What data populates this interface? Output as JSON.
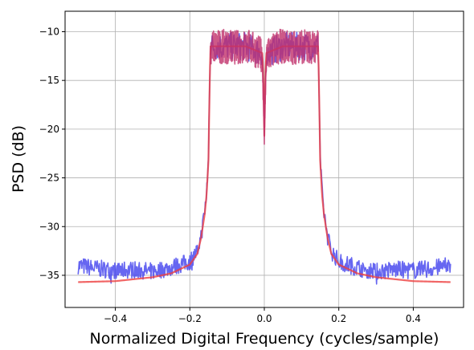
{
  "chart_data": {
    "type": "line",
    "title": "",
    "xlabel": "Normalized Digital Frequency (cycles/sample)",
    "ylabel": "PSD (dB)",
    "xlim": [
      -0.535,
      0.535
    ],
    "ylim": [
      -38.3,
      -7.9
    ],
    "xticks": [
      -0.4,
      -0.2,
      0.0,
      0.2,
      0.4
    ],
    "xtick_labels": [
      "−0.4",
      "−0.2",
      "0.0",
      "0.2",
      "0.4"
    ],
    "yticks": [
      -35,
      -30,
      -25,
      -20,
      -15,
      -10
    ],
    "ytick_labels": [
      "−35",
      "−30",
      "−25",
      "−20",
      "−15",
      "−10"
    ],
    "grid": true,
    "legend": "none",
    "series": [
      {
        "color": "#4040ee",
        "x": [
          -0.5,
          -0.45,
          -0.4,
          -0.35,
          -0.3,
          -0.25,
          -0.2,
          -0.18,
          -0.17,
          -0.16,
          -0.155,
          -0.15,
          -0.148,
          -0.146,
          -0.145,
          -0.1,
          -0.05,
          -0.005,
          -0.002,
          0.0,
          0.002,
          0.005,
          0.05,
          0.1,
          0.145,
          0.146,
          0.148,
          0.15,
          0.155,
          0.16,
          0.17,
          0.18,
          0.2,
          0.25,
          0.3,
          0.35,
          0.4,
          0.45,
          0.5
        ],
        "y": [
          -34.0,
          -34.3,
          -34.5,
          -34.4,
          -34.6,
          -34.2,
          -33.6,
          -32.5,
          -31.0,
          -28.5,
          -26.5,
          -23.0,
          -18.0,
          -14.0,
          -11.5,
          -11.5,
          -11.5,
          -12.2,
          -16.0,
          -20.5,
          -16.0,
          -12.2,
          -11.5,
          -11.5,
          -11.5,
          -14.0,
          -18.0,
          -23.0,
          -26.5,
          -28.5,
          -31.0,
          -32.5,
          -33.6,
          -34.2,
          -34.6,
          -34.4,
          -34.5,
          -34.3,
          -34.0
        ],
        "noise": 0.9
      },
      {
        "color": "#ee4040",
        "x": [
          -0.5,
          -0.4,
          -0.3,
          -0.25,
          -0.2,
          -0.18,
          -0.17,
          -0.16,
          -0.155,
          -0.15,
          -0.148,
          -0.146,
          -0.145,
          -0.1,
          -0.05,
          -0.005,
          -0.002,
          0.0,
          0.002,
          0.005,
          0.05,
          0.1,
          0.145,
          0.146,
          0.148,
          0.15,
          0.155,
          0.16,
          0.17,
          0.18,
          0.2,
          0.25,
          0.3,
          0.4,
          0.5
        ],
        "y": [
          -35.7,
          -35.6,
          -35.2,
          -34.8,
          -33.9,
          -32.8,
          -31.2,
          -28.7,
          -26.7,
          -23.2,
          -18.2,
          -14.2,
          -11.5,
          -11.5,
          -11.5,
          -12.2,
          -16.0,
          -20.7,
          -16.0,
          -12.2,
          -11.5,
          -11.5,
          -11.5,
          -14.2,
          -18.2,
          -23.2,
          -26.7,
          -28.7,
          -31.2,
          -32.8,
          -33.9,
          -34.8,
          -35.2,
          -35.6,
          -35.7
        ],
        "noise": 0.0
      },
      {
        "color": "#c0306a",
        "x": [
          -0.145,
          -0.12,
          -0.08,
          -0.04,
          -0.006,
          -0.003,
          0.0,
          0.003,
          0.006,
          0.04,
          0.08,
          0.12,
          0.145
        ],
        "y": [
          -11.6,
          -11.5,
          -11.6,
          -11.5,
          -12.4,
          -16.5,
          -20.3,
          -16.5,
          -12.4,
          -11.5,
          -11.6,
          -11.5,
          -11.6
        ],
        "noise": 1.1
      }
    ]
  }
}
